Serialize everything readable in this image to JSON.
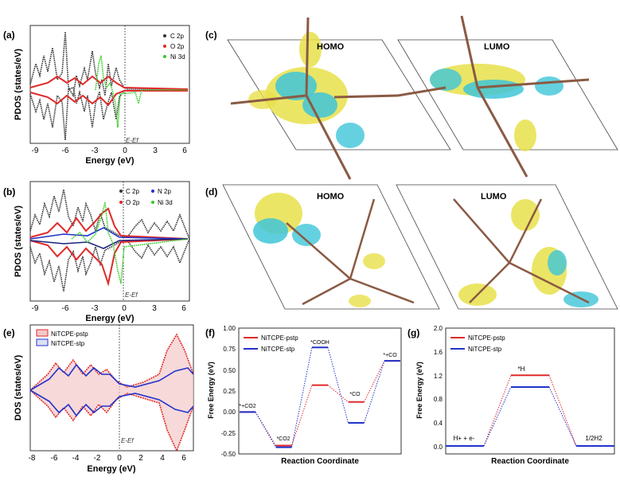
{
  "colors": {
    "black": "#333333",
    "red": "#e02a2a",
    "green": "#33cc22",
    "blue": "#2233cc",
    "navy": "#1a237e",
    "yellow": "#e8e04a",
    "cyan": "#3fc6d8",
    "brown": "#8a5a44"
  },
  "panels": {
    "a": {
      "label": "(a)",
      "ylabel": "PDOS (states/eV)",
      "xlabel": "Energy (eV)",
      "ef_label": "E-Ef",
      "xticks": [
        "-9",
        "-6",
        "-3",
        "0",
        "3",
        "6"
      ],
      "legend": [
        "C 2p",
        "O 2p",
        "Ni 3d"
      ]
    },
    "b": {
      "label": "(b)",
      "ylabel": "PDOS (states/eV)",
      "xlabel": "Energy (eV)",
      "ef_label": "E-Ef",
      "xticks": [
        "-9",
        "-6",
        "-3",
        "0",
        "3",
        "6"
      ],
      "legend": [
        "C 2p",
        "O 2p",
        "N 2p",
        "Ni 3d"
      ]
    },
    "c": {
      "label": "(c)",
      "left_title": "HOMO",
      "right_title": "LUMO"
    },
    "d": {
      "label": "(d)",
      "left_title": "HOMO",
      "right_title": "LUMO"
    },
    "e": {
      "label": "(e)",
      "ylabel": "DOS (states/eV)",
      "xlabel": "Energy (eV)",
      "ef_label": "E-Ef",
      "xticks": [
        "-8",
        "-6",
        "-4",
        "-2",
        "0",
        "2",
        "4",
        "6"
      ],
      "legend": [
        "NiTCPE-pstp",
        "NiTCPE-stp"
      ]
    },
    "f": {
      "label": "(f)",
      "ylabel": "Free Energy (eV)",
      "xlabel": "Reaction Coordinate",
      "yticks": [
        "1.00",
        "0.75",
        "0.50",
        "0.25",
        "0.00",
        "-0.25",
        "-0.50"
      ],
      "legend": [
        "NiTCPE-pstp",
        "NiTCPE-stp"
      ],
      "step_labels": [
        "*+CO2",
        "*CO2",
        "*COOH",
        "*CO",
        "*+CO"
      ]
    },
    "g": {
      "label": "(g)",
      "ylabel": "Free Energy (eV)",
      "xlabel": "Reaction Coordinate",
      "yticks": [
        "2.0",
        "1.6",
        "1.2",
        "0.8",
        "0.4",
        "0.0"
      ],
      "legend": [
        "NiTCPE-pstp",
        "NiTCPE-stp"
      ],
      "step_labels": [
        "H+ + e-",
        "*H",
        "1/2H2"
      ]
    }
  },
  "chart_data": [
    {
      "type": "line",
      "panel": "f",
      "xlabel": "Reaction Coordinate",
      "ylabel": "Free Energy (eV)",
      "ylim": [
        -0.5,
        1.0
      ],
      "categories": [
        "*+CO2",
        "*CO2",
        "*COOH",
        "*CO",
        "*+CO"
      ],
      "series": [
        {
          "name": "NiTCPE-pstp",
          "values": [
            0.0,
            -0.4,
            0.32,
            0.12,
            0.61
          ]
        },
        {
          "name": "NiTCPE-stp",
          "values": [
            0.0,
            -0.42,
            0.77,
            -0.13,
            0.61
          ]
        }
      ]
    },
    {
      "type": "line",
      "panel": "g",
      "xlabel": "Reaction Coordinate",
      "ylabel": "Free Energy (eV)",
      "ylim": [
        0.0,
        2.0
      ],
      "categories": [
        "H+ + e-",
        "*H",
        "1/2H2"
      ],
      "series": [
        {
          "name": "NiTCPE-pstp",
          "values": [
            0.0,
            1.2,
            0.0
          ]
        },
        {
          "name": "NiTCPE-stp",
          "values": [
            0.0,
            1.0,
            0.0
          ]
        }
      ]
    }
  ]
}
